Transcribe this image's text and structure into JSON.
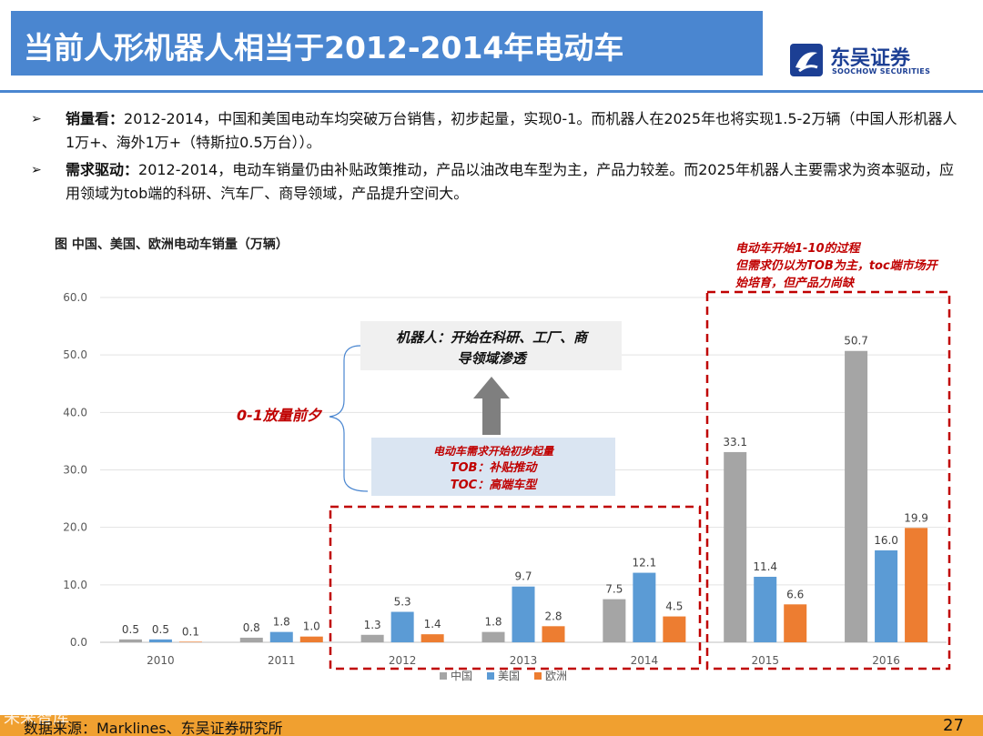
{
  "header": {
    "title": "当前人形机器人相当于2012-2014年电动车",
    "logo_cn": "东吴证券",
    "logo_en": "SOOCHOW SECURITIES"
  },
  "bullets": [
    {
      "arrow": "➢",
      "label": "销量看：",
      "text": "2012-2014，中国和美国电动车均突破万台销售，初步起量，实现0-1。而机器人在2025年也将实现1.5-2万辆（中国人形机器人1万+、海外1万+（特斯拉0.5万台））。"
    },
    {
      "arrow": "➢",
      "label": "需求驱动：",
      "text": "2012-2014，电动车销量仍由补贴政策推动，产品以油改电车型为主，产品力较差。而2025年机器人主要需求为资本驱动，应用领域为tob端的科研、汽车厂、商导领域，产品提升空间大。"
    }
  ],
  "chart_title": "图 中国、美国、欧洲电动车销量（万辆）",
  "chart_data": {
    "type": "bar",
    "categories": [
      "2010",
      "2011",
      "2012",
      "2013",
      "2014",
      "2015",
      "2016"
    ],
    "series": [
      {
        "name": "中国",
        "color": "#a5a5a5",
        "values": [
          0.5,
          0.8,
          1.3,
          1.8,
          7.5,
          33.1,
          50.7
        ]
      },
      {
        "name": "美国",
        "color": "#5b9bd5",
        "values": [
          0.5,
          1.8,
          5.3,
          9.7,
          12.1,
          11.4,
          16.0
        ]
      },
      {
        "name": "欧洲",
        "color": "#ed7d31",
        "values": [
          0.1,
          1.0,
          1.4,
          2.8,
          4.5,
          6.6,
          19.9
        ]
      }
    ],
    "yticks": [
      "0.0",
      "10.0",
      "20.0",
      "30.0",
      "40.0",
      "50.0",
      "60.0"
    ],
    "ylim": [
      0,
      60
    ],
    "grid": true,
    "legend_position": "bottom"
  },
  "annotations": {
    "robot_box": [
      "机器人：开始在科研、工厂、商",
      "导领域渗透"
    ],
    "zero_one": "0-1放量前夕",
    "ev_box": [
      "电动车需求开始初步起量",
      "TOB：补贴推动",
      "TOC：高端车型"
    ],
    "ten_note": [
      "电动车开始1-10的过程",
      "但需求仍以为TOB为主，toc端市场开",
      "始培育，但产品力尚缺"
    ]
  },
  "footer": {
    "source": "数据来源：Marklines、东吴证券研究所",
    "page": "27",
    "watermark": "未来智库"
  },
  "colors": {
    "title_bar": "#4a86d0",
    "accent_red": "#c00000",
    "footer_bar": "#f0a030"
  }
}
